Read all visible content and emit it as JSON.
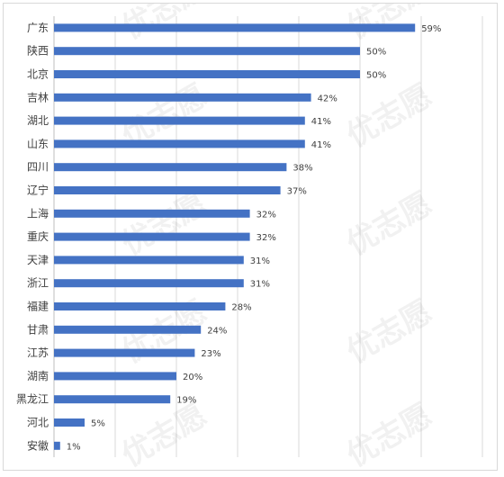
{
  "chart_data": {
    "type": "bar",
    "orientation": "horizontal",
    "categories": [
      "广东",
      "陕西",
      "北京",
      "吉林",
      "湖北",
      "山东",
      "四川",
      "辽宁",
      "上海",
      "重庆",
      "天津",
      "浙江",
      "福建",
      "甘肃",
      "江苏",
      "湖南",
      "黑龙江",
      "河北",
      "安徽"
    ],
    "values": [
      59,
      50,
      50,
      42,
      41,
      41,
      38,
      37,
      32,
      32,
      31,
      31,
      28,
      24,
      23,
      20,
      19,
      5,
      1
    ],
    "value_labels": [
      "59%",
      "50%",
      "50%",
      "42%",
      "41%",
      "41%",
      "38%",
      "37%",
      "32%",
      "32%",
      "31%",
      "31%",
      "28%",
      "24%",
      "23%",
      "20%",
      "19%",
      "5%",
      "1%"
    ],
    "unit": "%",
    "xlim": [
      0,
      70
    ],
    "grid": true,
    "legend": "none",
    "bar_color": "#4472C4",
    "gridline_color": "#d9d9d9"
  },
  "watermark": "优志愿"
}
